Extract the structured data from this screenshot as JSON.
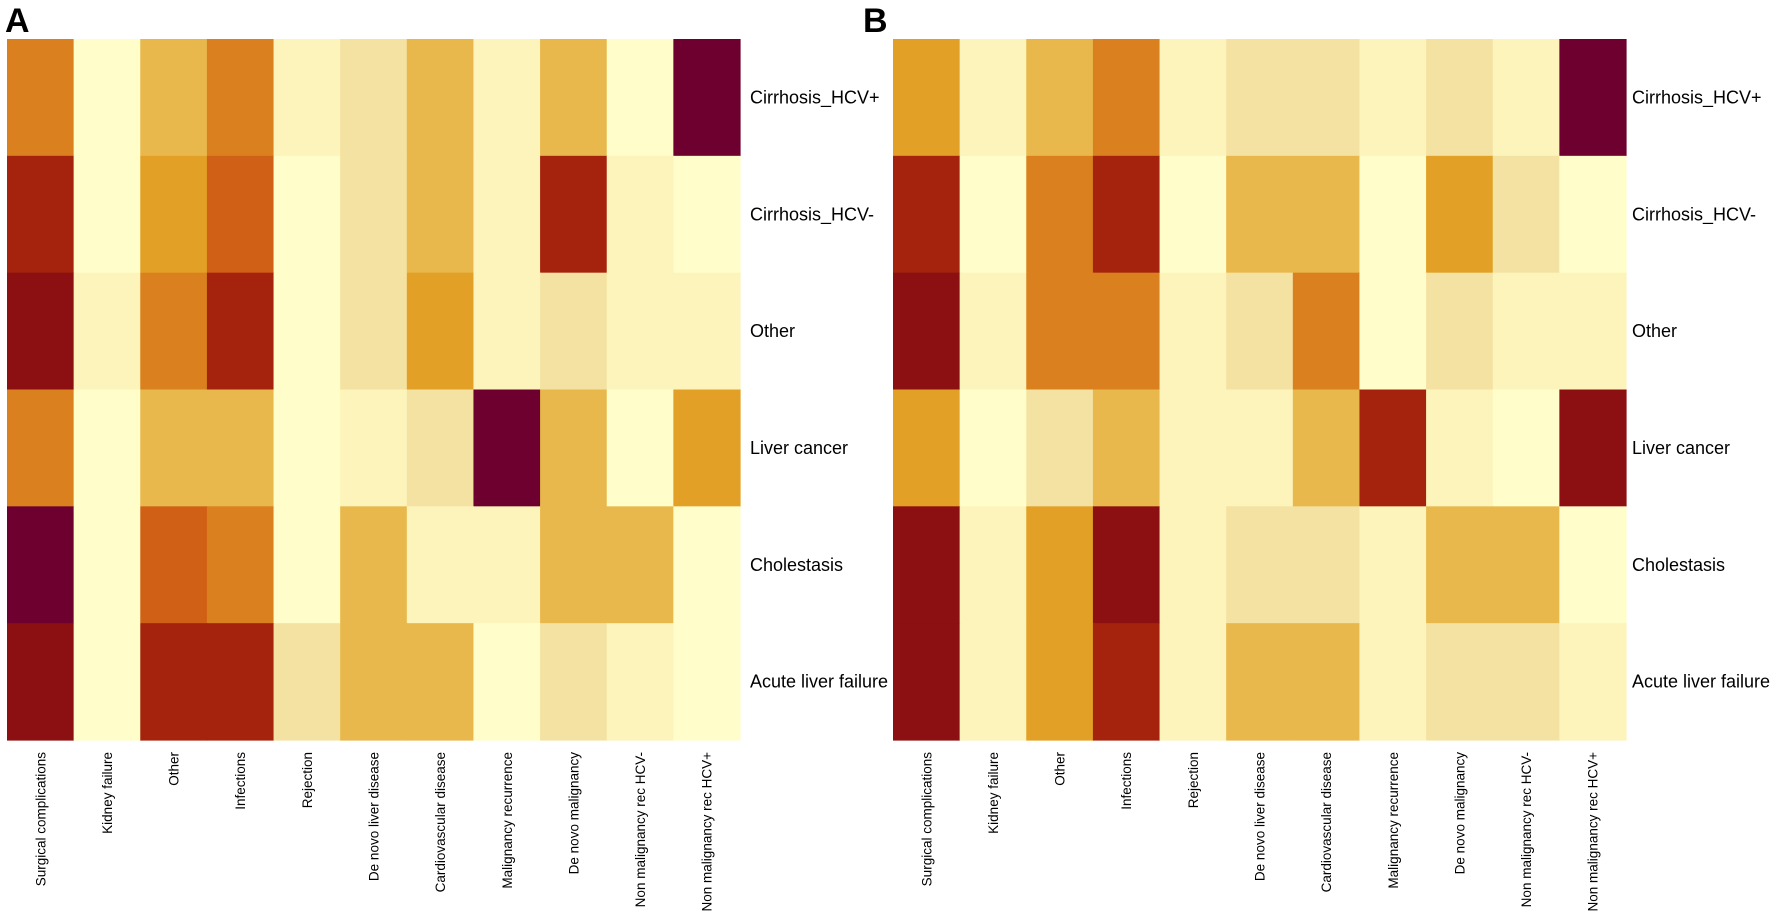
{
  "chart_data": [
    {
      "type": "heatmap",
      "panel_label": "A",
      "rows": [
        "Cirrhosis_HCV+",
        "Cirrhosis_HCV-",
        "Other",
        "Liver cancer",
        "Cholestasis",
        "Acute liver failure"
      ],
      "columns": [
        "Surgical complications",
        "Kidney failure",
        "Other",
        "Infections",
        "Rejection",
        "De novo liver disease",
        "Cardiovascular disease",
        "Malignancy recurrence",
        "De novo malignancy",
        "Non malignancy rec HCV-",
        "Non malignancy rec HCV+"
      ],
      "values": [
        [
          5,
          0,
          3,
          5,
          1,
          2,
          3,
          1,
          3,
          0,
          9
        ],
        [
          7,
          0,
          4,
          6,
          0,
          2,
          3,
          1,
          7,
          1,
          0
        ],
        [
          8,
          1,
          5,
          7,
          0,
          2,
          4,
          1,
          2,
          1,
          1
        ],
        [
          5,
          0,
          3,
          3,
          0,
          1,
          2,
          9,
          3,
          0,
          4
        ],
        [
          9,
          0,
          6,
          5,
          0,
          3,
          1,
          1,
          3,
          3,
          0
        ],
        [
          8,
          0,
          7,
          7,
          2,
          3,
          3,
          0,
          2,
          1,
          0
        ]
      ],
      "value_range": [
        0,
        9
      ]
    },
    {
      "type": "heatmap",
      "panel_label": "B",
      "rows": [
        "Cirrhosis_HCV+",
        "Cirrhosis_HCV-",
        "Other",
        "Liver cancer",
        "Cholestasis",
        "Acute liver failure"
      ],
      "columns": [
        "Surgical complications",
        "Kidney failure",
        "Other",
        "Infections",
        "Rejection",
        "De novo liver disease",
        "Cardiovascular disease",
        "Malignancy recurrence",
        "De novo malignancy",
        "Non malignancy rec HCV-",
        "Non malignancy rec HCV+"
      ],
      "values": [
        [
          4,
          1,
          3,
          5,
          1,
          2,
          2,
          1,
          2,
          1,
          9
        ],
        [
          7,
          0,
          5,
          7,
          0,
          3,
          3,
          0,
          4,
          2,
          0
        ],
        [
          8,
          1,
          5,
          5,
          1,
          2,
          5,
          0,
          2,
          1,
          1
        ],
        [
          4,
          0,
          2,
          3,
          1,
          1,
          3,
          7,
          1,
          0,
          8
        ],
        [
          8,
          1,
          4,
          8,
          1,
          2,
          2,
          1,
          3,
          3,
          0
        ],
        [
          8,
          1,
          4,
          7,
          1,
          3,
          3,
          1,
          2,
          2,
          1
        ]
      ],
      "value_range": [
        0,
        9
      ]
    }
  ],
  "colors": {
    "scale": [
      "#fffecb",
      "#fcf4ba",
      "#f4e2a2",
      "#eed080",
      "#e8b84c",
      "#e2a026",
      "#da801f",
      "#d06016",
      "#c33c0f",
      "#a5230c",
      "#8c0f11",
      "#6e0030"
    ]
  }
}
